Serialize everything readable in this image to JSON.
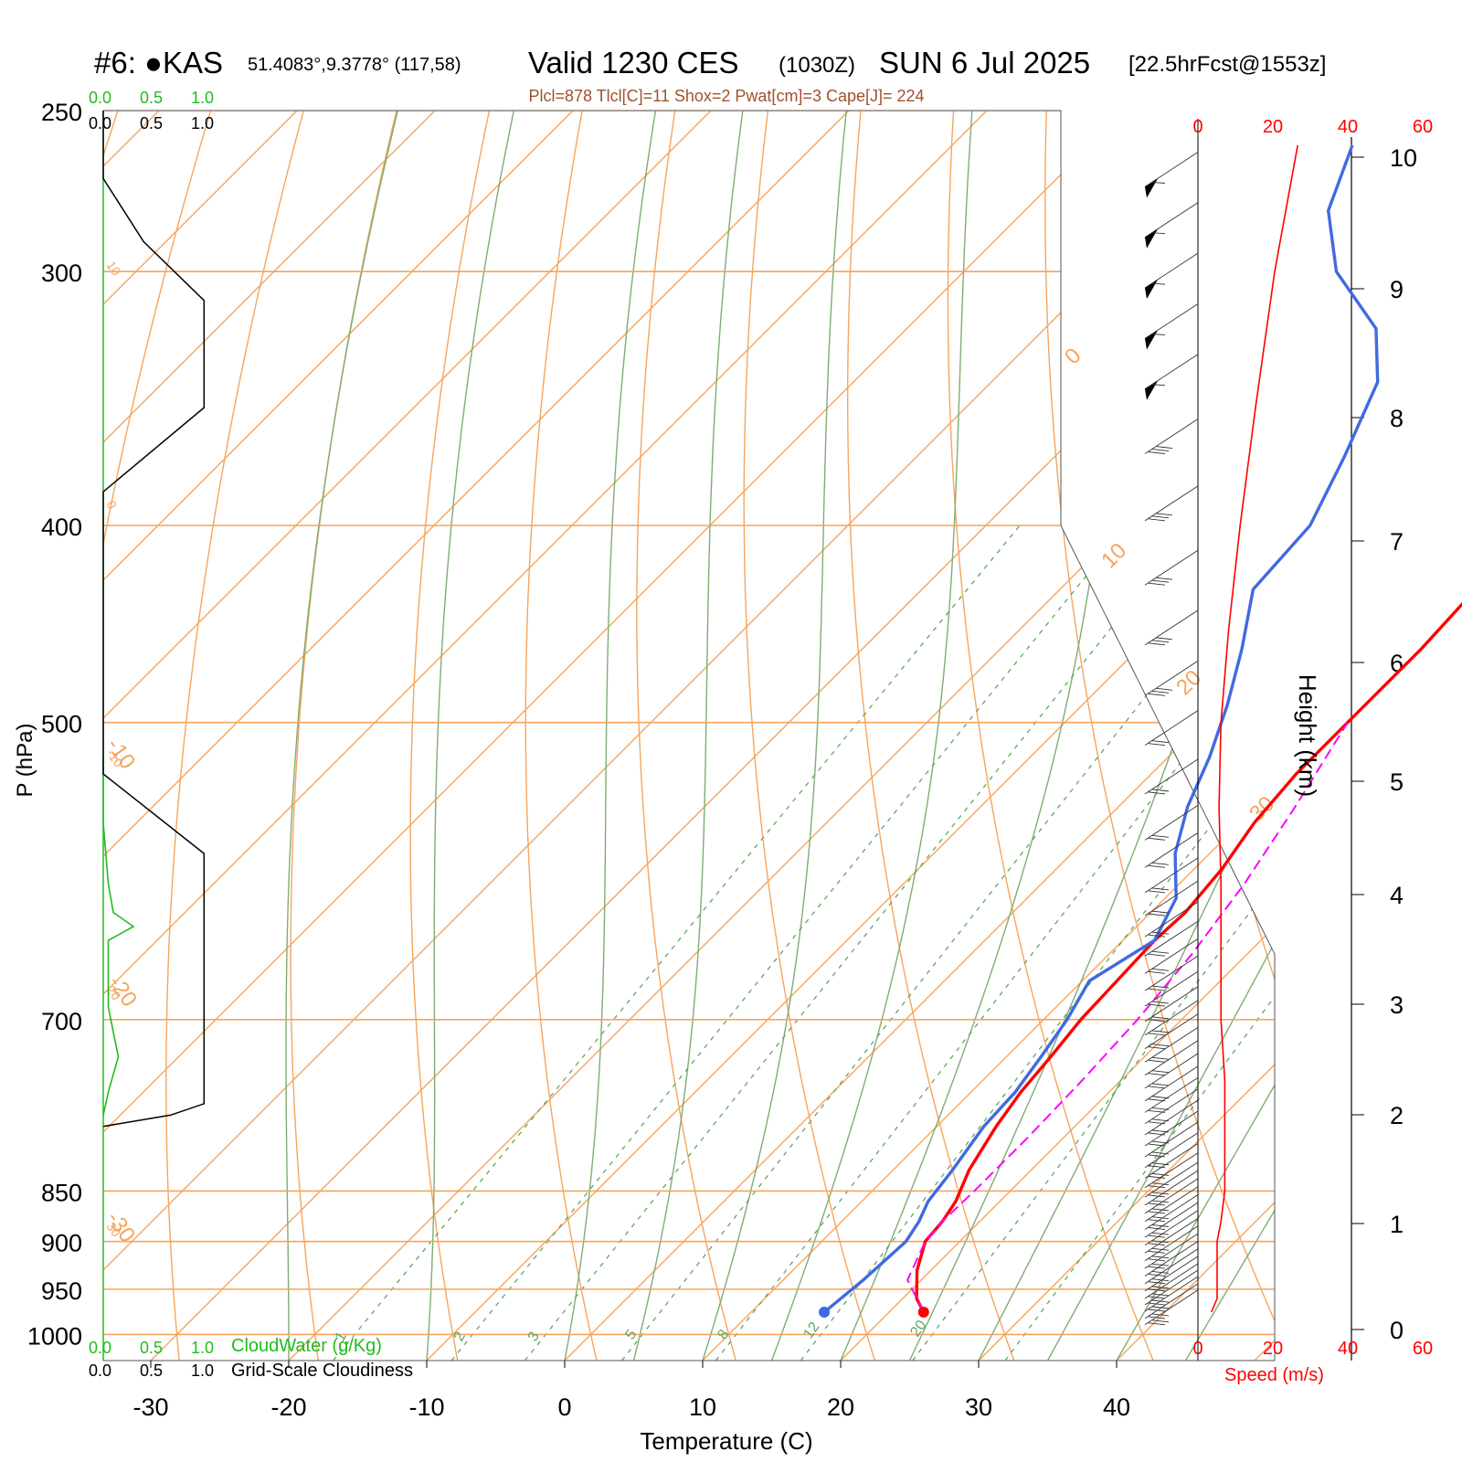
{
  "header": {
    "station": "#6: ●KAS",
    "coords": "51.4083°,9.3778° (117,58)",
    "valid": "Valid 1230 CES",
    "zulu": "(1030Z)",
    "date": "SUN 6 Jul 2025",
    "forecast": "[22.5hrFcst@1553z]",
    "indices": "Plcl=878 Tlcl[C]=11 Shox=2 Pwat[cm]=3 Cape[J]= 224"
  },
  "legend": {
    "cloudwater_ticks": [
      "0.0",
      "0.5",
      "1.0"
    ],
    "cloudwater_label": "CloudWater (g/Kg)",
    "cloudiness_ticks": [
      "0.0",
      "0.5",
      "1.0"
    ],
    "cloudiness_label": "Grid-Scale Cloudiness",
    "speed_label": "Speed (m/s)"
  },
  "colors": {
    "isotherm": "#f5a55d",
    "dry_adiabat": "#f5a55d",
    "moist_adiabat": "#7fad73",
    "mixing_ratio": "#5fa65f",
    "temperature": "#ff0000",
    "dewpoint": "#4169e1",
    "parcel": "#ff00ff",
    "cloud_water": "#22bb22",
    "cloudiness": "#000000",
    "wind_speed": "#ff0000"
  },
  "chart_data": {
    "type": "skew-t sounding",
    "xlabel": "Temperature (C)",
    "ylabel": "P (hPa)",
    "y2label": "Height (km)",
    "pressure_axis": "log",
    "xlim": [
      -33,
      37
    ],
    "ylim": [
      1030,
      250
    ],
    "x_ticks": [
      -30,
      -20,
      -10,
      0,
      10,
      20,
      30,
      40
    ],
    "pressure_levels": [
      250,
      300,
      400,
      500,
      700,
      850,
      900,
      950,
      1000
    ],
    "height_ticks_km": [
      0,
      1,
      2,
      3,
      4,
      5,
      6,
      7,
      8,
      9,
      10
    ],
    "isotherm_labels": [
      "0",
      "10",
      "20",
      "30",
      "-10",
      "-20",
      "-30"
    ],
    "dry_adiabat_labels": [
      "10",
      "0",
      "-10",
      "20",
      "30"
    ],
    "mixing_ratio_labels": [
      "1",
      "2",
      "3",
      "5",
      "8",
      "12",
      "20"
    ],
    "mixing_ratios_gkg": [
      1,
      2,
      3,
      5,
      8,
      12,
      20,
      30
    ],
    "speed_ticks": [
      "0",
      "20",
      "40",
      "60"
    ],
    "series": [
      {
        "name": "Temperature",
        "points": [
          [
            975,
            22.5
          ],
          [
            960,
            21
          ],
          [
            930,
            19
          ],
          [
            900,
            17.5
          ],
          [
            880,
            17.3
          ],
          [
            860,
            16.8
          ],
          [
            830,
            15.5
          ],
          [
            790,
            14.3
          ],
          [
            760,
            13.6
          ],
          [
            730,
            13.2
          ],
          [
            700,
            12.7
          ],
          [
            670,
            12.5
          ],
          [
            640,
            12.3
          ],
          [
            620,
            12.5
          ],
          [
            590,
            12.0
          ],
          [
            560,
            11.0
          ],
          [
            530,
            10.5
          ],
          [
            500,
            10.5
          ],
          [
            460,
            10.5
          ],
          [
            420,
            10.0
          ],
          [
            380,
            9.0
          ],
          [
            340,
            8.0
          ],
          [
            300,
            7.0
          ],
          [
            280,
            7.0
          ],
          [
            260,
            7.5
          ]
        ]
      },
      {
        "name": "Dewpoint",
        "points": [
          [
            975,
            15.3
          ],
          [
            940,
            15.8
          ],
          [
            900,
            16.1
          ],
          [
            880,
            15.6
          ],
          [
            860,
            14.8
          ],
          [
            830,
            14.3
          ],
          [
            790,
            13.4
          ],
          [
            760,
            13.2
          ],
          [
            730,
            12.5
          ],
          [
            700,
            11.7
          ],
          [
            670,
            10.5
          ],
          [
            640,
            12.3
          ],
          [
            610,
            10.8
          ],
          [
            580,
            7.5
          ],
          [
            550,
            5.0
          ],
          [
            520,
            3.0
          ],
          [
            490,
            0.5
          ],
          [
            460,
            -2.5
          ],
          [
            430,
            -6.0
          ],
          [
            400,
            -6.5
          ],
          [
            370,
            -9.0
          ],
          [
            340,
            -12.0
          ],
          [
            320,
            -16.0
          ],
          [
            300,
            -23.0
          ],
          [
            280,
            -28.0
          ],
          [
            260,
            -31.0
          ]
        ]
      },
      {
        "name": "Parcel",
        "points": [
          [
            975,
            22.5
          ],
          [
            940,
            19.0
          ],
          [
            900,
            17.5
          ],
          [
            878,
            17.3
          ],
          [
            850,
            17.4
          ],
          [
            800,
            17.4
          ],
          [
            750,
            17.2
          ],
          [
            700,
            16.8
          ],
          [
            650,
            16.0
          ],
          [
            600,
            14.7
          ],
          [
            550,
            12.8
          ],
          [
            500,
            10.5
          ]
        ]
      }
    ],
    "cloud_water_gkg": [
      [
        520,
        0.0
      ],
      [
        560,
        0.0
      ],
      [
        600,
        0.05
      ],
      [
        620,
        0.1
      ],
      [
        630,
        0.3
      ],
      [
        640,
        0.05
      ],
      [
        660,
        0.05
      ],
      [
        690,
        0.05
      ],
      [
        710,
        0.1
      ],
      [
        730,
        0.15
      ],
      [
        760,
        0.05
      ],
      [
        780,
        0.0
      ]
    ],
    "cloudiness_fraction": [
      [
        250,
        0.0
      ],
      [
        270,
        0.0
      ],
      [
        290,
        0.3
      ],
      [
        310,
        0.75
      ],
      [
        350,
        0.75
      ],
      [
        385,
        0.0
      ],
      [
        530,
        0.0
      ],
      [
        580,
        0.75
      ],
      [
        620,
        0.75
      ],
      [
        770,
        0.75
      ],
      [
        780,
        0.5
      ],
      [
        790,
        0.0
      ]
    ],
    "wind_speed_ms": [
      [
        975,
        3.5
      ],
      [
        960,
        5.0
      ],
      [
        930,
        5.0
      ],
      [
        900,
        5.0
      ],
      [
        880,
        6.0
      ],
      [
        850,
        7.0
      ],
      [
        800,
        7.0
      ],
      [
        750,
        7.0
      ],
      [
        700,
        6.0
      ],
      [
        650,
        6.0
      ],
      [
        600,
        6.0
      ],
      [
        550,
        5.5
      ],
      [
        500,
        6.0
      ],
      [
        450,
        8.0
      ],
      [
        400,
        11.0
      ],
      [
        350,
        15.0
      ],
      [
        300,
        20.0
      ],
      [
        260,
        26.0
      ]
    ],
    "wind_barbs": [
      {
        "p": 987,
        "kind": "light"
      },
      {
        "p": 980,
        "kind": "light"
      },
      {
        "p": 972,
        "kind": "light"
      },
      {
        "p": 965,
        "kind": "light"
      },
      {
        "p": 958,
        "kind": "light"
      },
      {
        "p": 950,
        "kind": "light"
      },
      {
        "p": 942,
        "kind": "light"
      },
      {
        "p": 934,
        "kind": "light"
      },
      {
        "p": 926,
        "kind": "light"
      },
      {
        "p": 918,
        "kind": "light"
      },
      {
        "p": 910,
        "kind": "light"
      },
      {
        "p": 902,
        "kind": "light"
      },
      {
        "p": 894,
        "kind": "light"
      },
      {
        "p": 886,
        "kind": "light"
      },
      {
        "p": 878,
        "kind": "light"
      },
      {
        "p": 870,
        "kind": "light"
      },
      {
        "p": 862,
        "kind": "light"
      },
      {
        "p": 854,
        "kind": "light"
      },
      {
        "p": 845,
        "kind": "light"
      },
      {
        "p": 836,
        "kind": "light"
      },
      {
        "p": 826,
        "kind": "light"
      },
      {
        "p": 816,
        "kind": "light"
      },
      {
        "p": 806,
        "kind": "light"
      },
      {
        "p": 796,
        "kind": "light"
      },
      {
        "p": 786,
        "kind": "light"
      },
      {
        "p": 776,
        "kind": "light"
      },
      {
        "p": 766,
        "kind": "light"
      },
      {
        "p": 755,
        "kind": "light"
      },
      {
        "p": 744,
        "kind": "light"
      },
      {
        "p": 733,
        "kind": "light"
      },
      {
        "p": 722,
        "kind": "light"
      },
      {
        "p": 711,
        "kind": "light"
      },
      {
        "p": 700,
        "kind": "light"
      },
      {
        "p": 688,
        "kind": "light"
      },
      {
        "p": 676,
        "kind": "light"
      },
      {
        "p": 663,
        "kind": "light"
      },
      {
        "p": 650,
        "kind": "light"
      },
      {
        "p": 636,
        "kind": "light"
      },
      {
        "p": 621,
        "kind": "light"
      },
      {
        "p": 605,
        "kind": "light"
      },
      {
        "p": 588,
        "kind": "light"
      },
      {
        "p": 570,
        "kind": "light"
      },
      {
        "p": 541,
        "kind": "light"
      },
      {
        "p": 512,
        "kind": "light"
      },
      {
        "p": 484,
        "kind": "medium"
      },
      {
        "p": 457,
        "kind": "medium"
      },
      {
        "p": 427,
        "kind": "medium"
      },
      {
        "p": 397,
        "kind": "medium"
      },
      {
        "p": 368,
        "kind": "medium"
      },
      {
        "p": 342,
        "kind": "pennant"
      },
      {
        "p": 323,
        "kind": "pennant"
      },
      {
        "p": 305,
        "kind": "pennant"
      },
      {
        "p": 288,
        "kind": "pennant"
      },
      {
        "p": 272,
        "kind": "pennant"
      }
    ]
  }
}
